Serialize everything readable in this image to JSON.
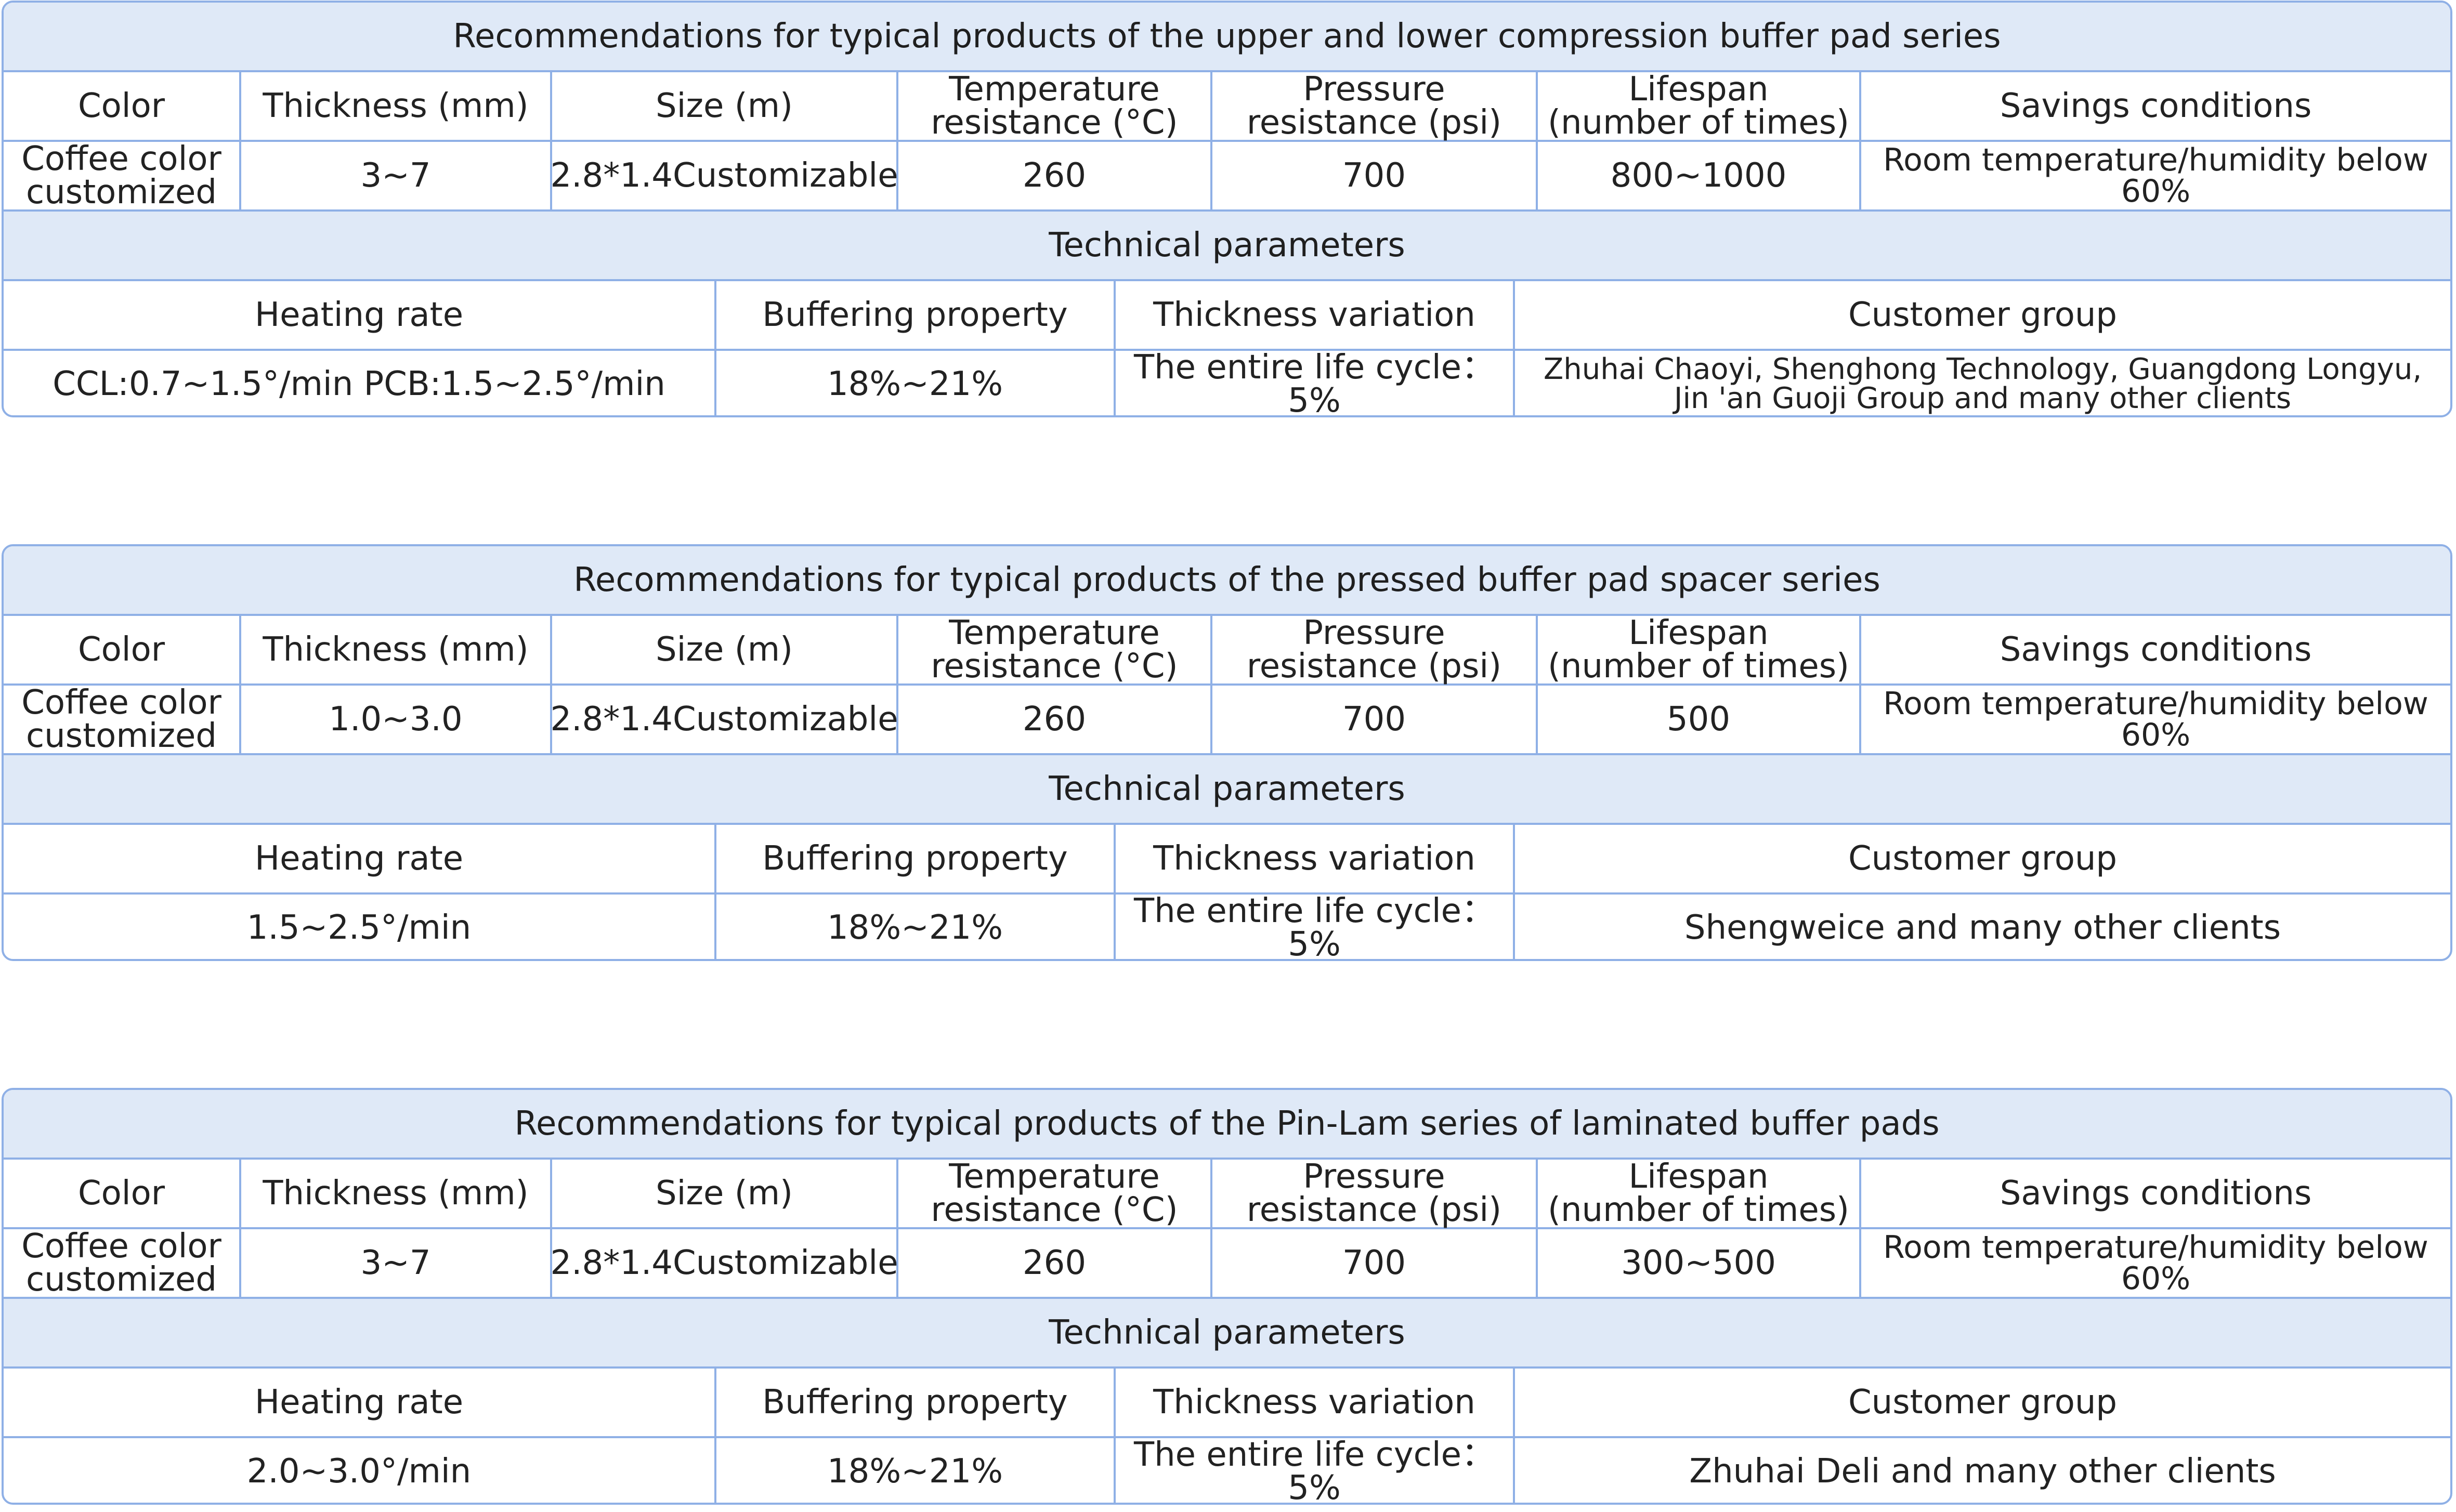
{
  "tables": [
    {
      "title": "Recommendations for typical products of the upper and lower compression buffer pad series",
      "spec_headers": [
        "Color",
        "Thickness (mm)",
        "Size (m)",
        "Temperature\nresistance (°C)",
        "Pressure\nresistance (psi)",
        "Lifespan\n(number of times)",
        "Savings conditions"
      ],
      "spec_values": [
        "Coffee color\ncustomized",
        "3~7",
        "2.8*1.4Customizable",
        "260",
        "700",
        "800~1000",
        "Room temperature/humidity below 60%"
      ],
      "tech_title": "Technical parameters",
      "tech_headers": [
        "Heating rate",
        "Buffering property",
        "Thickness variation",
        "Customer group"
      ],
      "tech_values": [
        "CCL:0.7~1.5°/min  PCB:1.5~2.5°/min",
        "18%~21%",
        "The entire life cycle：5%",
        "Zhuhai Chaoyi, Shenghong Technology, Guangdong Longyu,\nJin 'an Guoji Group and many other clients"
      ]
    },
    {
      "title": "Recommendations for typical products of the pressed buffer pad spacer series",
      "spec_headers": [
        "Color",
        "Thickness (mm)",
        "Size (m)",
        "Temperature\nresistance (°C)",
        "Pressure\nresistance (psi)",
        "Lifespan\n(number of times)",
        "Savings conditions"
      ],
      "spec_values": [
        "Coffee color\ncustomized",
        "1.0~3.0",
        "2.8*1.4Customizable",
        "260",
        "700",
        "500",
        "Room temperature/humidity below 60%"
      ],
      "tech_title": "Technical parameters",
      "tech_headers": [
        "Heating rate",
        "Buffering property",
        "Thickness variation",
        "Customer group"
      ],
      "tech_values": [
        "1.5~2.5°/min",
        "18%~21%",
        "The entire life cycle：5%",
        "Shengweice and many other clients"
      ]
    },
    {
      "title": "Recommendations for typical products of the Pin-Lam series of laminated buffer pads",
      "spec_headers": [
        "Color",
        "Thickness (mm)",
        "Size (m)",
        "Temperature\nresistance (°C)",
        "Pressure\nresistance (psi)",
        "Lifespan\n(number of times)",
        "Savings conditions"
      ],
      "spec_values": [
        "Coffee color\ncustomized",
        "3~7",
        "2.8*1.4Customizable",
        "260",
        "700",
        "300~500",
        "Room temperature/humidity below 60%"
      ],
      "tech_title": "Technical parameters",
      "tech_headers": [
        "Heating rate",
        "Buffering property",
        "Thickness variation",
        "Customer group"
      ],
      "tech_values": [
        "2.0~3.0°/min",
        "18%~21%",
        "The entire life cycle：5%",
        "Zhuhai Deli and many other clients"
      ]
    }
  ],
  "colors": {
    "border": "#8fb0e6",
    "banner_bg": "#dfe9f7"
  }
}
